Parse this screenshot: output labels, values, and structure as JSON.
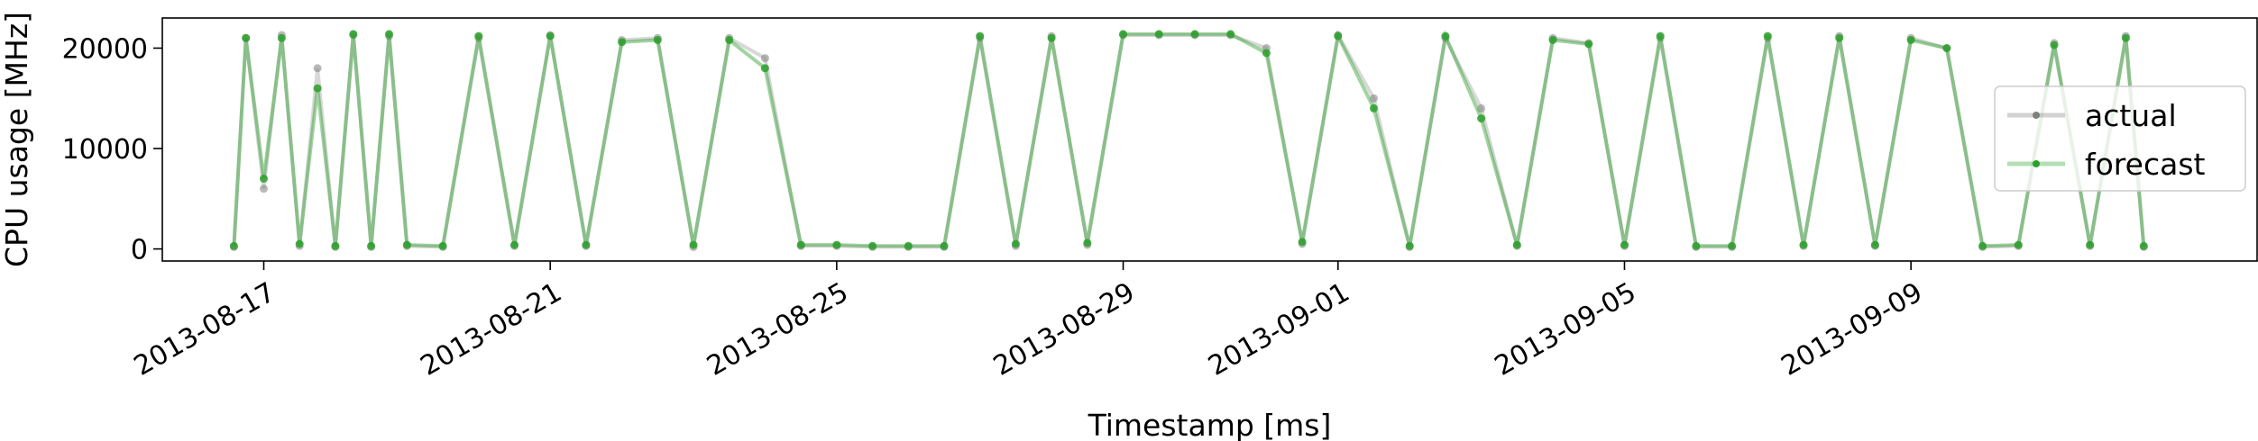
{
  "chart_data": {
    "type": "line",
    "title": "",
    "xlabel": "Timestamp [ms]",
    "ylabel": "CPU usage [MHz]",
    "x_range": [
      "2013-08-15T14:00",
      "2013-09-13T20:00"
    ],
    "ylim": [
      -1200,
      23000
    ],
    "x_ticks": [
      "2013-08-17",
      "2013-08-21",
      "2013-08-25",
      "2013-08-29",
      "2013-09-01",
      "2013-09-05",
      "2013-09-09"
    ],
    "y_ticks": [
      0,
      10000,
      20000
    ],
    "y_tick_labels": [
      "0",
      "10000",
      "20000"
    ],
    "grid": false,
    "legend": {
      "position": "right",
      "entries": [
        "actual",
        "forecast"
      ]
    },
    "colors": {
      "actual": "#7f7f7f",
      "forecast": "#2ca02c"
    },
    "series": [
      {
        "name": "actual",
        "x": [
          "2013-08-16T14:00",
          "2013-08-16T18:00",
          "2013-08-17T00:00",
          "2013-08-17T06:00",
          "2013-08-17T12:00",
          "2013-08-17T18:00",
          "2013-08-18T00:00",
          "2013-08-18T06:00",
          "2013-08-18T12:00",
          "2013-08-18T18:00",
          "2013-08-19T00:00",
          "2013-08-19T12:00",
          "2013-08-20T00:00",
          "2013-08-20T12:00",
          "2013-08-21T00:00",
          "2013-08-21T12:00",
          "2013-08-22T00:00",
          "2013-08-22T12:00",
          "2013-08-23T00:00",
          "2013-08-23T12:00",
          "2013-08-24T00:00",
          "2013-08-24T12:00",
          "2013-08-25T00:00",
          "2013-08-25T12:00",
          "2013-08-26T00:00",
          "2013-08-26T12:00",
          "2013-08-27T00:00",
          "2013-08-27T12:00",
          "2013-08-28T00:00",
          "2013-08-28T12:00",
          "2013-08-29T00:00",
          "2013-08-29T12:00",
          "2013-08-30T00:00",
          "2013-08-30T12:00",
          "2013-08-31T00:00",
          "2013-08-31T12:00",
          "2013-09-01T00:00",
          "2013-09-01T12:00",
          "2013-09-02T00:00",
          "2013-09-02T12:00",
          "2013-09-03T00:00",
          "2013-09-03T12:00",
          "2013-09-04T00:00",
          "2013-09-04T12:00",
          "2013-09-05T00:00",
          "2013-09-05T12:00",
          "2013-09-06T00:00",
          "2013-09-06T12:00",
          "2013-09-07T00:00",
          "2013-09-07T12:00",
          "2013-09-08T00:00",
          "2013-09-08T12:00",
          "2013-09-09T00:00",
          "2013-09-09T12:00",
          "2013-09-10T00:00",
          "2013-09-10T12:00",
          "2013-09-11T00:00",
          "2013-09-11T12:00",
          "2013-09-12T00:00",
          "2013-09-12T06:00"
        ],
        "values": [
          200,
          21000,
          6000,
          21300,
          300,
          18000,
          200,
          21300,
          200,
          21200,
          300,
          200,
          21000,
          300,
          21300,
          300,
          20800,
          21000,
          200,
          21000,
          19000,
          300,
          300,
          200,
          200,
          200,
          21000,
          300,
          21200,
          400,
          21300,
          21300,
          21300,
          21300,
          20000,
          500,
          21300,
          15000,
          200,
          21000,
          14000,
          300,
          21000,
          20500,
          300,
          21000,
          200,
          200,
          21000,
          300,
          21200,
          300,
          21000,
          20000,
          200,
          300,
          20500,
          300,
          21200,
          200
        ]
      },
      {
        "name": "forecast",
        "x": [
          "2013-08-16T14:00",
          "2013-08-16T18:00",
          "2013-08-17T00:00",
          "2013-08-17T06:00",
          "2013-08-17T12:00",
          "2013-08-17T18:00",
          "2013-08-18T00:00",
          "2013-08-18T06:00",
          "2013-08-18T12:00",
          "2013-08-18T18:00",
          "2013-08-19T00:00",
          "2013-08-19T12:00",
          "2013-08-20T00:00",
          "2013-08-20T12:00",
          "2013-08-21T00:00",
          "2013-08-21T12:00",
          "2013-08-22T00:00",
          "2013-08-22T12:00",
          "2013-08-23T00:00",
          "2013-08-23T12:00",
          "2013-08-24T00:00",
          "2013-08-24T12:00",
          "2013-08-25T00:00",
          "2013-08-25T12:00",
          "2013-08-26T00:00",
          "2013-08-26T12:00",
          "2013-08-27T00:00",
          "2013-08-27T12:00",
          "2013-08-28T00:00",
          "2013-08-28T12:00",
          "2013-08-29T00:00",
          "2013-08-29T12:00",
          "2013-08-30T00:00",
          "2013-08-30T12:00",
          "2013-08-31T00:00",
          "2013-08-31T12:00",
          "2013-09-01T00:00",
          "2013-09-01T12:00",
          "2013-09-02T00:00",
          "2013-09-02T12:00",
          "2013-09-03T00:00",
          "2013-09-03T12:00",
          "2013-09-04T00:00",
          "2013-09-04T12:00",
          "2013-09-05T00:00",
          "2013-09-05T12:00",
          "2013-09-06T00:00",
          "2013-09-06T12:00",
          "2013-09-07T00:00",
          "2013-09-07T12:00",
          "2013-09-08T00:00",
          "2013-09-08T12:00",
          "2013-09-09T00:00",
          "2013-09-09T12:00",
          "2013-09-10T00:00",
          "2013-09-10T12:00",
          "2013-09-11T00:00",
          "2013-09-11T12:00",
          "2013-09-12T00:00",
          "2013-09-12T06:00"
        ],
        "values": [
          300,
          21000,
          7000,
          21000,
          500,
          16000,
          300,
          21400,
          300,
          21400,
          400,
          300,
          21200,
          400,
          21200,
          400,
          20600,
          20800,
          400,
          20800,
          18000,
          400,
          400,
          300,
          300,
          300,
          21200,
          500,
          21000,
          600,
          21400,
          21400,
          21400,
          21400,
          19500,
          700,
          21200,
          14000,
          300,
          21200,
          13000,
          400,
          20800,
          20400,
          400,
          21200,
          300,
          300,
          21200,
          400,
          21000,
          400,
          20800,
          20000,
          300,
          400,
          20300,
          400,
          21000,
          300
        ]
      }
    ]
  }
}
